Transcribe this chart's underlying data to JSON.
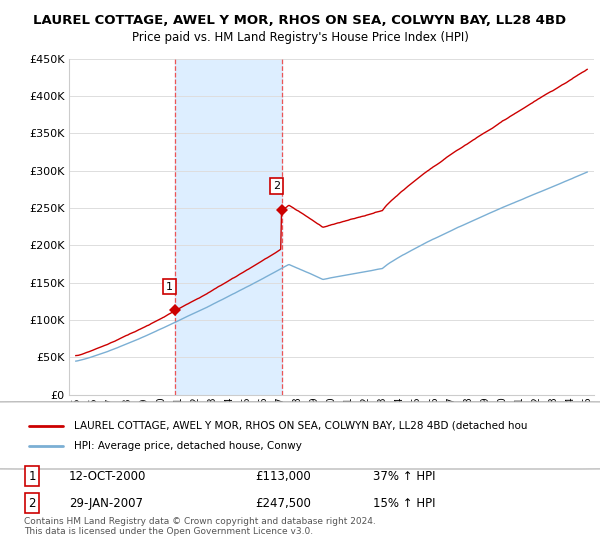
{
  "title": "LAUREL COTTAGE, AWEL Y MOR, RHOS ON SEA, COLWYN BAY, LL28 4BD",
  "subtitle": "Price paid vs. HM Land Registry's House Price Index (HPI)",
  "ylim": [
    0,
    450000
  ],
  "yticks": [
    0,
    50000,
    100000,
    150000,
    200000,
    250000,
    300000,
    350000,
    400000,
    450000
  ],
  "ytick_labels": [
    "£0",
    "£50K",
    "£100K",
    "£150K",
    "£200K",
    "£250K",
    "£300K",
    "£350K",
    "£400K",
    "£450K"
  ],
  "sale1_x": 2000.79,
  "sale1_price": 113000,
  "sale2_x": 2007.08,
  "sale2_price": 247500,
  "legend_line1": "LAUREL COTTAGE, AWEL Y MOR, RHOS ON SEA, COLWYN BAY, LL28 4BD (detached hou",
  "legend_line2": "HPI: Average price, detached house, Conwy",
  "table_row1": [
    "1",
    "12-OCT-2000",
    "£113,000",
    "37% ↑ HPI"
  ],
  "table_row2": [
    "2",
    "29-JAN-2007",
    "£247,500",
    "15% ↑ HPI"
  ],
  "footer": "Contains HM Land Registry data © Crown copyright and database right 2024.\nThis data is licensed under the Open Government Licence v3.0.",
  "price_line_color": "#cc0000",
  "hpi_line_color": "#7bafd4",
  "shade_color": "#ddeeff",
  "vline_color": "#ee4444",
  "grid_color": "#dddddd"
}
